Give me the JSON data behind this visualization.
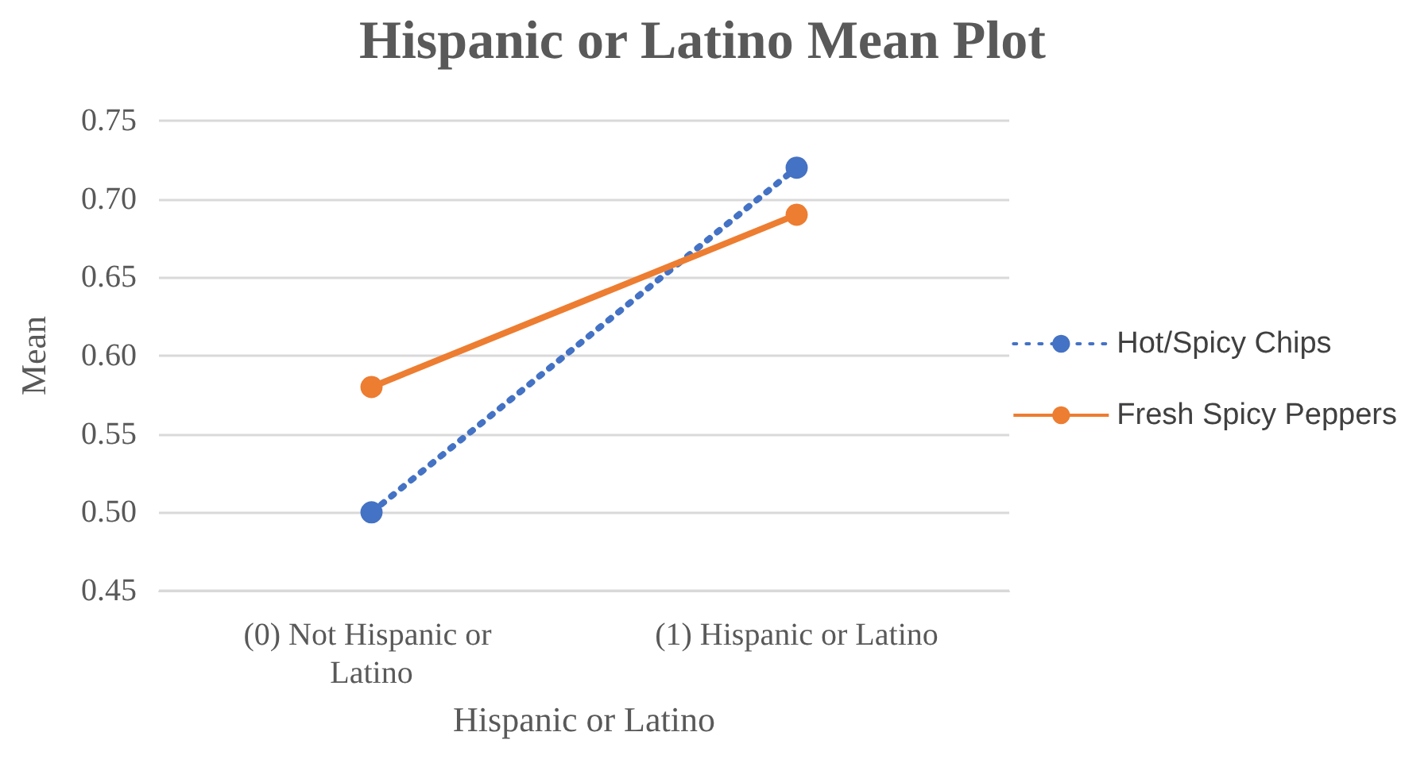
{
  "chart_data": {
    "type": "line",
    "title": "Hispanic or Latino Mean Plot",
    "xlabel": "Hispanic or Latino",
    "ylabel": "Mean",
    "categories": [
      "(0) Not Hispanic or Latino",
      "(1) Hispanic or Latino"
    ],
    "series": [
      {
        "name": "Hot/Spicy Chips",
        "color": "#4472c4",
        "values": [
          0.5,
          0.72
        ],
        "line_style": "dotted"
      },
      {
        "name": "Fresh Spicy Peppers",
        "color": "#ed7d31",
        "values": [
          0.58,
          0.69
        ],
        "line_style": "solid"
      }
    ],
    "ylim": [
      0.45,
      0.75
    ],
    "yticks": [
      0.45,
      {
        "value": 0.5,
        "label": "0.50"
      },
      0.55,
      {
        "value": 0.6,
        "label": "0.60"
      },
      0.65,
      {
        "value": 0.7,
        "label": "0.70"
      },
      0.75
    ],
    "grid": "y",
    "legend": "right",
    "marker": "circle"
  }
}
